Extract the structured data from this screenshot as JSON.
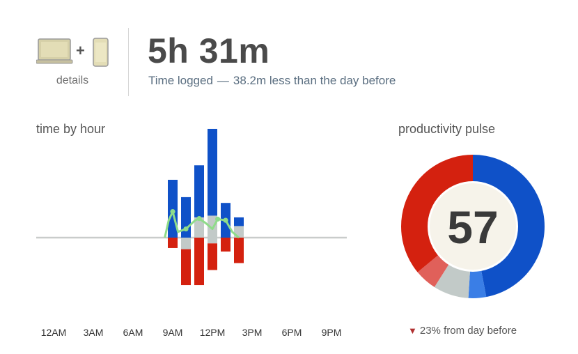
{
  "header": {
    "devices_icon": "laptop-plus-phone-icon",
    "details_label": "details",
    "total_time": "5h 31m",
    "subtitle_prefix": "Time logged",
    "subtitle_separator": "—",
    "subtitle_suffix": "38.2m less than the day before"
  },
  "sections": {
    "time_by_hour_title": "time by hour",
    "productivity_pulse_title": "productivity pulse"
  },
  "pulse": {
    "change_icon": "arrow-down-icon",
    "change_text": "23% from day before"
  },
  "colors": {
    "productive": "#0f51c8",
    "distracting": "#d4210f",
    "neutral": "#c2cac8",
    "very_productive": "#0f51c8",
    "productive_light": "#3a7ee6",
    "distracting_light": "#e0605a",
    "trend_line": "#8fdc8a",
    "baseline": "#c9cccb"
  },
  "chart_data": [
    {
      "type": "bar",
      "title": "time by hour",
      "x_tick_labels": [
        "12AM",
        "3AM",
        "6AM",
        "9AM",
        "12PM",
        "3PM",
        "6PM",
        "9PM"
      ],
      "x": [
        9,
        10,
        11,
        12,
        13,
        14,
        15
      ],
      "series": [
        {
          "kind": "productive",
          "values": [
            1.0,
            0.7,
            0.9,
            1.5,
            0.6,
            0.15,
            0
          ]
        },
        {
          "kind": "neutral",
          "values": [
            0,
            0,
            0.35,
            0.38,
            0,
            0.2,
            0
          ]
        },
        {
          "kind": "distracting",
          "values": [
            0.18,
            0.62,
            0.82,
            0.46,
            0.24,
            0.44,
            0
          ]
        },
        {
          "kind": "neutral-down",
          "values": [
            0,
            0.2,
            0,
            0.1,
            0,
            0,
            0
          ]
        }
      ],
      "trend": {
        "x": [
          8.4,
          8.7,
          9,
          9.4,
          10,
          10.7,
          11,
          11.5,
          12,
          12.4,
          13,
          13.5,
          14
        ],
        "values": [
          0,
          0.3,
          0.45,
          0.1,
          0.15,
          0.3,
          0.33,
          0.25,
          0.15,
          0.32,
          0.3,
          0.1,
          0
        ]
      },
      "ylim": [
        -1.05,
        1.5
      ],
      "grid": false,
      "legend": "none"
    },
    {
      "type": "pie",
      "title": "productivity pulse",
      "center_value": "57",
      "slices": [
        {
          "kind": "very_productive",
          "value": 47
        },
        {
          "kind": "productive_light",
          "value": 4
        },
        {
          "kind": "neutral",
          "value": 8
        },
        {
          "kind": "distracting_light",
          "value": 5
        },
        {
          "kind": "distracting",
          "value": 36
        }
      ]
    }
  ]
}
